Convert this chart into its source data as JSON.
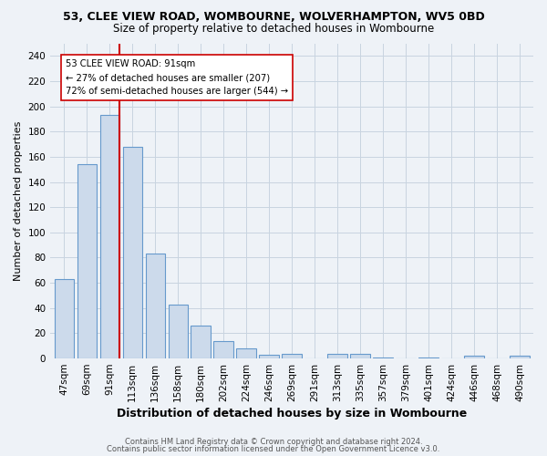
{
  "title1": "53, CLEE VIEW ROAD, WOMBOURNE, WOLVERHAMPTON, WV5 0BD",
  "title2": "Size of property relative to detached houses in Wombourne",
  "xlabel": "Distribution of detached houses by size in Wombourne",
  "ylabel": "Number of detached properties",
  "categories": [
    "47sqm",
    "69sqm",
    "91sqm",
    "113sqm",
    "136sqm",
    "158sqm",
    "180sqm",
    "202sqm",
    "224sqm",
    "246sqm",
    "269sqm",
    "291sqm",
    "313sqm",
    "335sqm",
    "357sqm",
    "379sqm",
    "401sqm",
    "424sqm",
    "446sqm",
    "468sqm",
    "490sqm"
  ],
  "values": [
    63,
    154,
    193,
    168,
    83,
    43,
    26,
    14,
    8,
    3,
    4,
    0,
    4,
    4,
    1,
    0,
    1,
    0,
    2,
    0,
    2
  ],
  "bar_color": "#ccdaeb",
  "bar_edge_color": "#6699cc",
  "highlight_index": 2,
  "highlight_line_color": "#cc0000",
  "annotation_text": "53 CLEE VIEW ROAD: 91sqm\n← 27% of detached houses are smaller (207)\n72% of semi-detached houses are larger (544) →",
  "annotation_box_color": "#ffffff",
  "annotation_box_edge": "#cc0000",
  "ylim": [
    0,
    250
  ],
  "yticks": [
    0,
    20,
    40,
    60,
    80,
    100,
    120,
    140,
    160,
    180,
    200,
    220,
    240
  ],
  "footer1": "Contains HM Land Registry data © Crown copyright and database right 2024.",
  "footer2": "Contains public sector information licensed under the Open Government Licence v3.0.",
  "bg_color": "#eef2f7",
  "grid_color": "#c8d4e0",
  "title1_fontsize": 9,
  "title2_fontsize": 8.5,
  "xlabel_fontsize": 9,
  "ylabel_fontsize": 8,
  "tick_fontsize": 7.5,
  "footer_fontsize": 6.0
}
